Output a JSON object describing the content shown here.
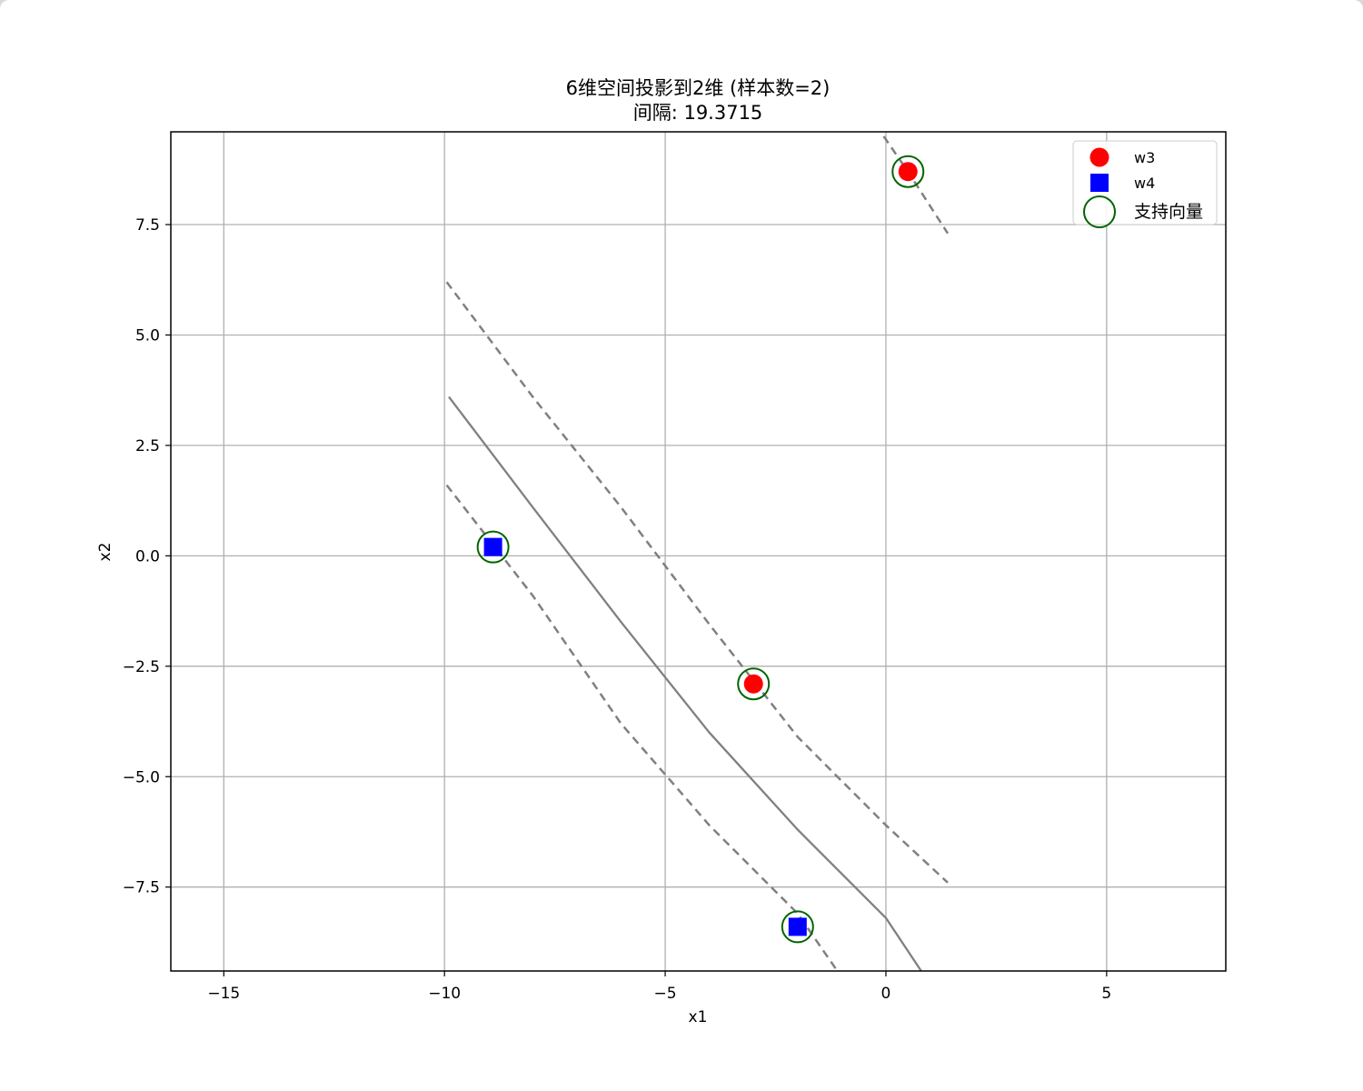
{
  "chart_data": {
    "type": "scatter",
    "title": "6维空间投影到2维 (样本数=2)",
    "subtitle": "间隔: 19.3715",
    "xlabel": "x1",
    "ylabel": "x2",
    "xlim": [
      -16.2,
      7.7
    ],
    "ylim": [
      -9.4,
      9.6
    ],
    "xticks": [
      -15,
      -10,
      -5,
      0,
      5
    ],
    "xtick_labels": [
      "−15",
      "−10",
      "−5",
      "0",
      "5"
    ],
    "yticks": [
      -7.5,
      -5.0,
      -2.5,
      0.0,
      2.5,
      5.0,
      7.5
    ],
    "ytick_labels": [
      "−7.5",
      "−5.0",
      "−2.5",
      "0.0",
      "2.5",
      "5.0",
      "7.5"
    ],
    "grid": true,
    "legend_position": "top-right",
    "series": [
      {
        "name": "w3",
        "marker": "circle",
        "color": "#ff0000",
        "points": [
          [
            0.5,
            8.7
          ],
          [
            -3.0,
            -2.9
          ]
        ]
      },
      {
        "name": "w4",
        "marker": "square",
        "color": "#0000ff",
        "points": [
          [
            -8.9,
            0.2
          ],
          [
            -2.0,
            -8.4
          ]
        ]
      },
      {
        "name": "支持向量",
        "marker": "hollow-circle",
        "color": "#006400",
        "points": [
          [
            0.5,
            8.7
          ],
          [
            -3.0,
            -2.9
          ],
          [
            -8.9,
            0.2
          ],
          [
            -2.0,
            -8.4
          ]
        ]
      }
    ],
    "decision_boundary": {
      "color": "#808080",
      "points": [
        [
          -9.9,
          3.6
        ],
        [
          -8.0,
          1.1
        ],
        [
          -6.0,
          -1.5
        ],
        [
          -4.0,
          -4.0
        ],
        [
          -2.0,
          -6.2
        ],
        [
          0.0,
          -8.2
        ],
        [
          0.8,
          -9.4
        ]
      ]
    },
    "margins": [
      {
        "color": "#808080",
        "style": "dashed",
        "points": [
          [
            -9.95,
            6.2
          ],
          [
            -8.0,
            3.6
          ],
          [
            -6.0,
            1.1
          ],
          [
            -4.0,
            -1.55
          ],
          [
            -2.0,
            -4.1
          ],
          [
            0.0,
            -6.1
          ],
          [
            1.4,
            -7.4
          ]
        ]
      },
      {
        "color": "#808080",
        "style": "dashed",
        "points": [
          [
            -0.05,
            9.5
          ],
          [
            0.5,
            8.7
          ],
          [
            1.4,
            7.3
          ]
        ]
      },
      {
        "color": "#808080",
        "style": "dashed",
        "points": [
          [
            -9.95,
            1.6
          ],
          [
            -8.0,
            -0.9
          ],
          [
            -6.0,
            -3.8
          ],
          [
            -4.0,
            -6.1
          ],
          [
            -2.0,
            -8.1
          ],
          [
            -1.1,
            -9.4
          ]
        ]
      }
    ]
  }
}
